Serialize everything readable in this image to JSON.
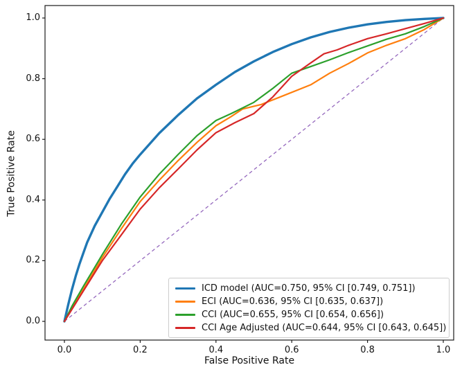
{
  "chart_data": {
    "type": "line",
    "title": "",
    "xlabel": "False Positive Rate",
    "ylabel": "True Positive Rate",
    "xlim": [
      -0.05,
      1.05
    ],
    "ylim": [
      -0.05,
      1.05
    ],
    "xticks": [
      0.0,
      0.2,
      0.4,
      0.6,
      0.8,
      1.0
    ],
    "yticks": [
      0.0,
      0.2,
      0.4,
      0.6,
      0.8,
      1.0
    ],
    "grid": false,
    "legend_position": "lower right",
    "series": [
      {
        "name": "ICD model (AUC=0.750, 95% CI [0.749, 0.751])",
        "color": "#1f77b4",
        "linewidth": 3.4,
        "style": "solid",
        "points": [
          [
            0,
            0
          ],
          [
            0.01,
            0.055
          ],
          [
            0.02,
            0.105
          ],
          [
            0.03,
            0.15
          ],
          [
            0.04,
            0.19
          ],
          [
            0.05,
            0.225
          ],
          [
            0.06,
            0.26
          ],
          [
            0.08,
            0.315
          ],
          [
            0.1,
            0.36
          ],
          [
            0.12,
            0.405
          ],
          [
            0.14,
            0.445
          ],
          [
            0.16,
            0.485
          ],
          [
            0.18,
            0.52
          ],
          [
            0.2,
            0.55
          ],
          [
            0.25,
            0.62
          ],
          [
            0.3,
            0.68
          ],
          [
            0.35,
            0.735
          ],
          [
            0.4,
            0.78
          ],
          [
            0.45,
            0.822
          ],
          [
            0.5,
            0.857
          ],
          [
            0.55,
            0.888
          ],
          [
            0.6,
            0.914
          ],
          [
            0.65,
            0.936
          ],
          [
            0.7,
            0.954
          ],
          [
            0.75,
            0.968
          ],
          [
            0.8,
            0.979
          ],
          [
            0.85,
            0.987
          ],
          [
            0.9,
            0.993
          ],
          [
            0.95,
            0.997
          ],
          [
            1,
            1
          ]
        ]
      },
      {
        "name": "ECI (AUC=0.636, 95% CI [0.635, 0.637])",
        "color": "#ff7f0e",
        "linewidth": 2.2,
        "style": "solid",
        "points": [
          [
            0,
            0
          ],
          [
            0.02,
            0.045
          ],
          [
            0.05,
            0.105
          ],
          [
            0.1,
            0.21
          ],
          [
            0.15,
            0.305
          ],
          [
            0.2,
            0.395
          ],
          [
            0.25,
            0.465
          ],
          [
            0.3,
            0.53
          ],
          [
            0.35,
            0.59
          ],
          [
            0.4,
            0.645
          ],
          [
            0.44,
            0.675
          ],
          [
            0.47,
            0.7
          ],
          [
            0.52,
            0.715
          ],
          [
            0.58,
            0.745
          ],
          [
            0.65,
            0.78
          ],
          [
            0.7,
            0.818
          ],
          [
            0.75,
            0.85
          ],
          [
            0.8,
            0.885
          ],
          [
            0.85,
            0.91
          ],
          [
            0.9,
            0.932
          ],
          [
            0.95,
            0.962
          ],
          [
            1,
            1
          ]
        ]
      },
      {
        "name": "CCI (AUC=0.655, 95% CI [0.654, 0.656])",
        "color": "#2ca02c",
        "linewidth": 2.2,
        "style": "solid",
        "points": [
          [
            0,
            0
          ],
          [
            0.02,
            0.05
          ],
          [
            0.05,
            0.115
          ],
          [
            0.1,
            0.22
          ],
          [
            0.15,
            0.32
          ],
          [
            0.2,
            0.41
          ],
          [
            0.25,
            0.485
          ],
          [
            0.3,
            0.55
          ],
          [
            0.35,
            0.612
          ],
          [
            0.4,
            0.662
          ],
          [
            0.44,
            0.685
          ],
          [
            0.5,
            0.722
          ],
          [
            0.55,
            0.768
          ],
          [
            0.6,
            0.818
          ],
          [
            0.65,
            0.84
          ],
          [
            0.7,
            0.862
          ],
          [
            0.75,
            0.886
          ],
          [
            0.8,
            0.908
          ],
          [
            0.85,
            0.93
          ],
          [
            0.9,
            0.948
          ],
          [
            0.95,
            0.972
          ],
          [
            1,
            1
          ]
        ]
      },
      {
        "name": "CCI Age Adjusted (AUC=0.644, 95% CI [0.643, 0.645])",
        "color": "#d62728",
        "linewidth": 2.2,
        "style": "solid",
        "points": [
          [
            0,
            0
          ],
          [
            0.02,
            0.04
          ],
          [
            0.05,
            0.1
          ],
          [
            0.1,
            0.2
          ],
          [
            0.15,
            0.285
          ],
          [
            0.2,
            0.37
          ],
          [
            0.25,
            0.44
          ],
          [
            0.3,
            0.502
          ],
          [
            0.35,
            0.565
          ],
          [
            0.4,
            0.622
          ],
          [
            0.45,
            0.655
          ],
          [
            0.5,
            0.685
          ],
          [
            0.55,
            0.74
          ],
          [
            0.6,
            0.808
          ],
          [
            0.65,
            0.852
          ],
          [
            0.685,
            0.882
          ],
          [
            0.72,
            0.895
          ],
          [
            0.75,
            0.91
          ],
          [
            0.8,
            0.932
          ],
          [
            0.85,
            0.948
          ],
          [
            0.9,
            0.965
          ],
          [
            0.95,
            0.982
          ],
          [
            1,
            1
          ]
        ]
      }
    ],
    "reference_line": {
      "name": "chance diagonal",
      "color": "#9467bd",
      "linewidth": 1.3,
      "style": "dashed",
      "points": [
        [
          0,
          0
        ],
        [
          1,
          1
        ]
      ]
    },
    "colors": {
      "spine": "#1a1a1a",
      "tick": "#1a1a1a",
      "legend_border": "#cccccc",
      "background": "#ffffff"
    }
  }
}
